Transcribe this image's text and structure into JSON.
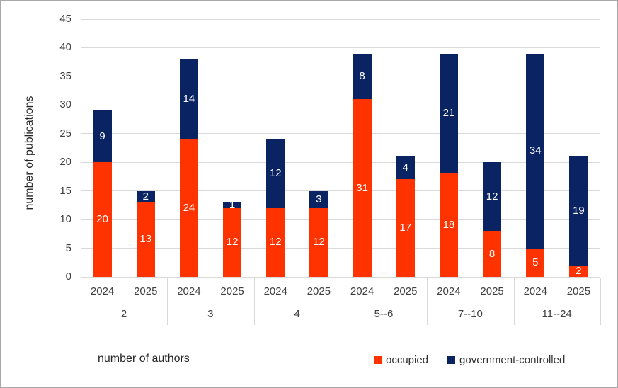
{
  "chart_data": {
    "type": "bar",
    "stacked": true,
    "title": "",
    "xlabel": "number of authors",
    "ylabel": "number of publications",
    "ylim": [
      0,
      45
    ],
    "ytick_step": 5,
    "ytick_labels": [
      "0",
      "5",
      "10",
      "15",
      "20",
      "25",
      "30",
      "35",
      "40",
      "45"
    ],
    "grid": true,
    "legend_position": "bottom-right",
    "categories": [
      "2",
      "3",
      "4",
      "5--6",
      "7--10",
      "11--24"
    ],
    "subcategories": [
      "2024",
      "2025"
    ],
    "series": [
      {
        "name": "occupied",
        "color": "#ff3300",
        "values": {
          "2024": [
            20,
            24,
            12,
            31,
            18,
            5
          ],
          "2025": [
            13,
            12,
            12,
            17,
            8,
            2
          ]
        }
      },
      {
        "name": "government-controlled",
        "color": "#0a2463",
        "values": {
          "2024": [
            9,
            14,
            12,
            8,
            21,
            34
          ],
          "2025": [
            2,
            1,
            3,
            4,
            12,
            19
          ]
        }
      }
    ]
  },
  "colors": {
    "gridline": "#d9d9d9",
    "axis_text": "#404040",
    "bar_label_text": "#ffffff",
    "background": "#ffffff"
  }
}
